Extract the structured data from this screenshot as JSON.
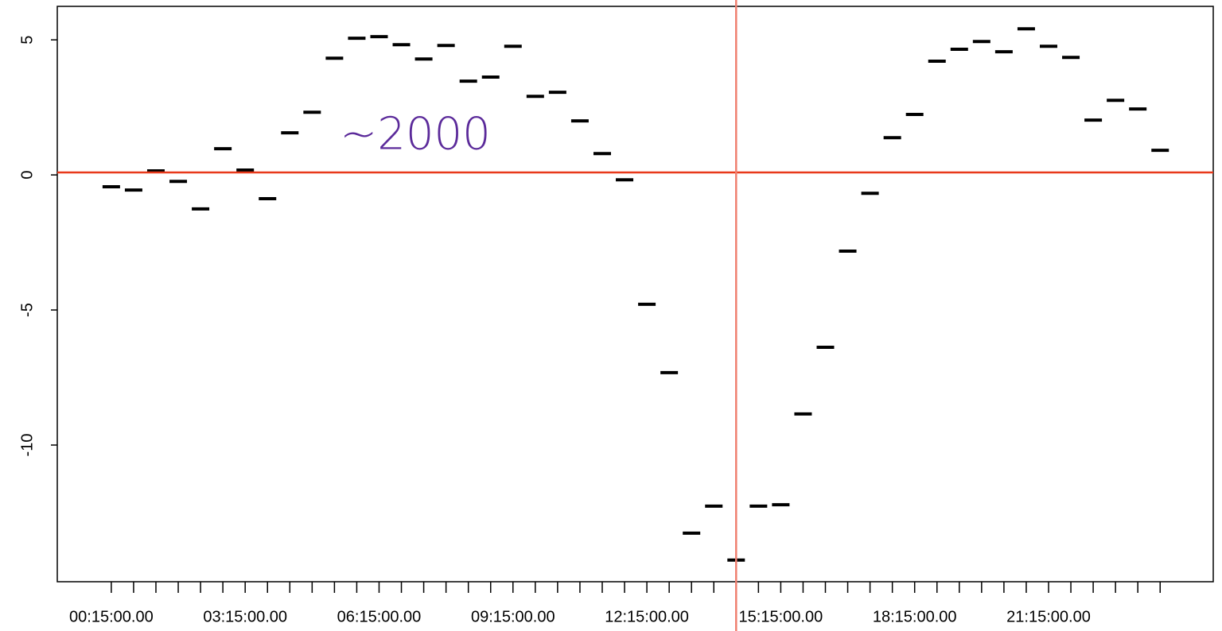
{
  "chart_data": {
    "type": "dash",
    "categories": [
      "00:15:00.00",
      null,
      null,
      null,
      null,
      null,
      "03:15:00.00",
      null,
      null,
      null,
      null,
      null,
      "06:15:00.00",
      null,
      null,
      null,
      null,
      null,
      "09:15:00.00",
      null,
      null,
      null,
      null,
      null,
      "12:15:00.00",
      null,
      null,
      null,
      null,
      null,
      "15:15:00.00",
      null,
      null,
      null,
      null,
      null,
      "18:15:00.00",
      null,
      null,
      null,
      null,
      null,
      "21:15:00.00",
      null,
      null,
      null,
      null,
      null
    ],
    "values": [
      -0.44,
      -0.56,
      0.15,
      -0.24,
      -1.26,
      0.97,
      0.18,
      -0.88,
      1.56,
      2.32,
      4.32,
      5.06,
      5.12,
      4.82,
      4.29,
      4.79,
      3.47,
      3.62,
      4.76,
      2.91,
      3.06,
      2.0,
      0.79,
      -0.18,
      -4.79,
      -7.32,
      -13.26,
      -12.26,
      -14.26,
      -12.26,
      -12.21,
      -8.85,
      -6.38,
      -2.82,
      -0.68,
      1.38,
      2.24,
      4.21,
      4.65,
      4.94,
      4.56,
      5.41,
      4.76,
      4.35,
      2.03,
      2.76,
      2.44,
      0.91
    ],
    "color": "#000000",
    "xlim": [
      -1.42,
      50.38
    ],
    "ylim": [
      -15.06,
      6.24
    ],
    "yticks": [
      5,
      0,
      -5,
      -10
    ],
    "hline": {
      "value": 0.09,
      "color": "#e8391a"
    },
    "vline": {
      "x": 29,
      "color": "#f08070"
    },
    "annotation": "~2000"
  }
}
